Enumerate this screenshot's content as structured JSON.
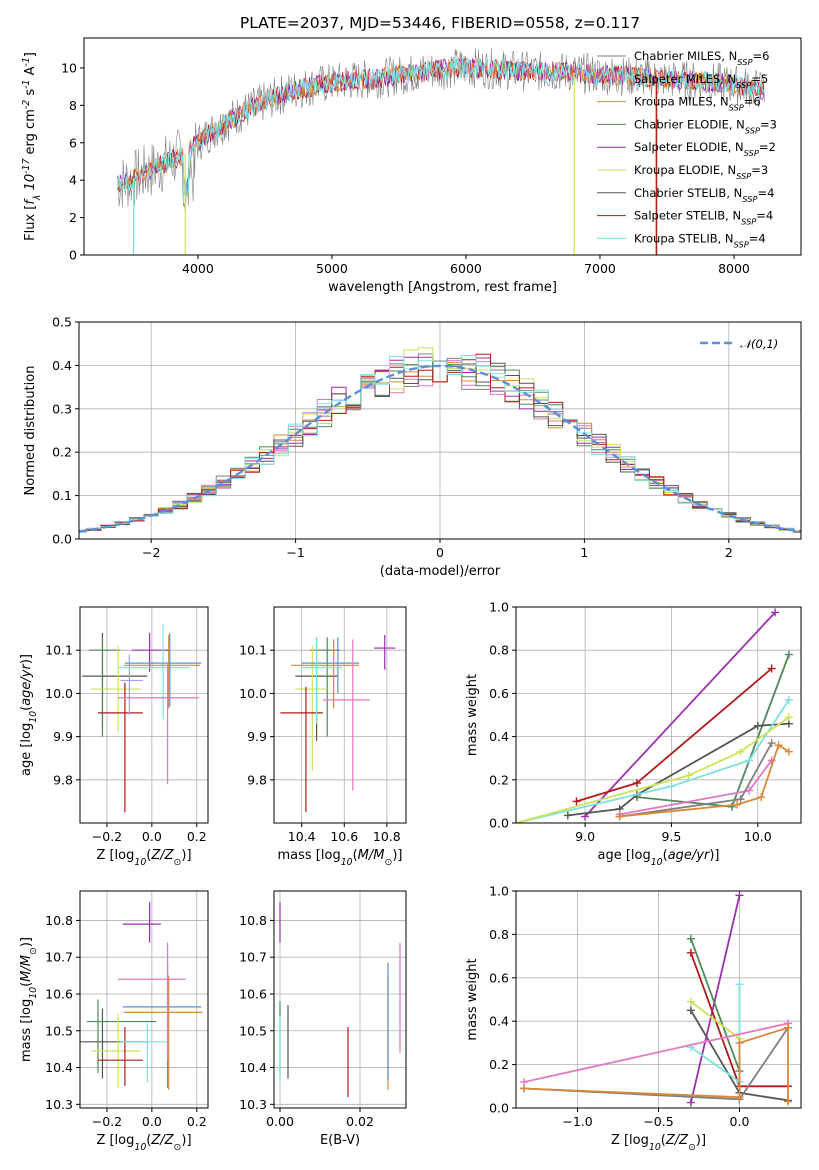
{
  "title": "PLATE=2037, MJD=53446, FIBERID=0558, z=0.117",
  "colors": {
    "chabrier_miles": "#808080",
    "salpeter_miles": "#e377c2",
    "kroupa_miles": "#d9883a",
    "chabrier_elodie": "#4f8a5a",
    "salpeter_elodie": "#9b2fae",
    "kroupa_elodie": "#c9e45b",
    "chabrier_stelib": "#555555",
    "salpeter_stelib": "#b01a1a",
    "kroupa_stelib": "#7fe0e0",
    "normal": "#5b8fd8",
    "spec_blue": "#6b8be0"
  },
  "legend": {
    "items": [
      {
        "label": "Chabrier MILES, N$_{SSP}$=6",
        "color": "#808080"
      },
      {
        "label": "Salpeter MILES, N$_{SSP}$=5",
        "color": "#e377c2"
      },
      {
        "label": "Kroupa MILES, N$_{SSP}$=6",
        "color": "#d9883a"
      },
      {
        "label": "Chabrier ELODIE, N$_{SSP}$=3",
        "color": "#4f8a5a"
      },
      {
        "label": "Salpeter ELODIE, N$_{SSP}$=2",
        "color": "#9b2fae"
      },
      {
        "label": "Kroupa ELODIE, N$_{SSP}$=3",
        "color": "#c9e45b"
      },
      {
        "label": "Chabrier STELIB, N$_{SSP}$=4",
        "color": "#555555"
      },
      {
        "label": "Salpeter STELIB, N$_{SSP}$=4",
        "color": "#b01a1a"
      },
      {
        "label": "Kroupa STELIB, N$_{SSP}$=4",
        "color": "#7fe0e0"
      }
    ],
    "normal_label": "$\\mathcal{N}(0,1)$"
  },
  "chart_data": [
    {
      "id": "spectrum",
      "type": "line",
      "xlabel": "wavelength [Angstrom, rest frame]",
      "ylabel": "Flux [$f_\\lambda 10^{-17}$ erg cm$^{-2}$ s$^{-1}$ A$^{-1}$]",
      "xlim": [
        3150,
        8500
      ],
      "ylim": [
        0,
        11.6
      ],
      "xticks": [
        4000,
        5000,
        6000,
        7000,
        8000
      ],
      "yticks": [
        0,
        2,
        4,
        6,
        8,
        10
      ],
      "grid": false,
      "continuum": {
        "x": [
          3400,
          3500,
          3700,
          3900,
          4000,
          4100,
          4300,
          4500,
          4700,
          4900,
          5100,
          5300,
          5500,
          5700,
          5900,
          6100,
          6300,
          6500,
          6700,
          6900,
          7100,
          7300,
          7500,
          7700,
          7900,
          8100,
          8230
        ],
        "y": [
          3.8,
          4.0,
          4.7,
          5.4,
          6.0,
          6.6,
          7.5,
          8.2,
          8.8,
          9.1,
          9.3,
          9.4,
          9.6,
          9.8,
          10.0,
          10.0,
          9.9,
          9.8,
          9.8,
          9.7,
          9.6,
          9.5,
          9.4,
          9.3,
          9.2,
          9.0,
          8.8
        ]
      }
    },
    {
      "id": "residuals",
      "type": "line",
      "xlabel": "(data-model)/error",
      "ylabel": "Normed distribution",
      "xlim": [
        -2.5,
        2.5
      ],
      "ylim": [
        0,
        0.5
      ],
      "xticks": [
        -2,
        -1,
        0,
        1,
        2
      ],
      "yticks": [
        0.0,
        0.1,
        0.2,
        0.3,
        0.4,
        0.5
      ],
      "grid": true,
      "legend_position": "top-right"
    },
    {
      "id": "age_vs_Z",
      "type": "scatter",
      "xlabel": "Z [log$_{10}$($Z/Z_\\odot$)]",
      "ylabel": "age  [log$_{10}$($age/yr$)]",
      "xlim": [
        -0.32,
        0.25
      ],
      "ylim": [
        9.7,
        10.2
      ],
      "xticks": [
        -0.2,
        0.0,
        0.2
      ],
      "yticks": [
        9.8,
        9.9,
        10.0,
        10.1
      ],
      "grid": true,
      "points": [
        {
          "x": -0.22,
          "y": 10.04,
          "xerr": [
            0.09,
            0.2
          ],
          "yerr": [
            0.12,
            0.1
          ],
          "color": "#555555"
        },
        {
          "x": -0.22,
          "y": 10.1,
          "xerr": [
            0.06,
            0.08
          ],
          "yerr": [
            0.2,
            0.03
          ],
          "color": "#4f8a5a"
        },
        {
          "x": -0.15,
          "y": 10.01,
          "xerr": [
            0.12,
            0.1
          ],
          "yerr": [
            0.1,
            0.1
          ],
          "color": "#c9e45b"
        },
        {
          "x": -0.12,
          "y": 9.955,
          "xerr": [
            0.12,
            0.08
          ],
          "yerr": [
            0.23,
            0.07
          ],
          "color": "#b01a1a"
        },
        {
          "x": -0.1,
          "y": 10.03,
          "xerr": [
            0.04,
            0.06
          ],
          "yerr": [
            0.08,
            0.06
          ],
          "color": "#a0a0ff"
        },
        {
          "x": -0.01,
          "y": 10.1,
          "xerr": [
            0.08,
            0.09
          ],
          "yerr": [
            0.05,
            0.04
          ],
          "color": "#9b2fae"
        },
        {
          "x": 0.05,
          "y": 10.06,
          "xerr": [
            0.2,
            0.12
          ],
          "yerr": [
            0.12,
            0.1
          ],
          "color": "#7fe0e0"
        },
        {
          "x": 0.075,
          "y": 10.065,
          "xerr": [
            0.2,
            0.14
          ],
          "yerr": [
            0.1,
            0.07
          ],
          "color": "#d9883a"
        },
        {
          "x": 0.08,
          "y": 10.07,
          "xerr": [
            0.2,
            0.14
          ],
          "yerr": [
            0.1,
            0.07
          ],
          "color": "#5b8fd8"
        },
        {
          "x": 0.07,
          "y": 9.99,
          "xerr": [
            0.22,
            0.14
          ],
          "yerr": [
            0.2,
            0.08
          ],
          "color": "#e377c2"
        }
      ]
    },
    {
      "id": "age_vs_mass",
      "type": "scatter",
      "xlabel": "mass [log$_{10}$($M/M_\\odot$)]",
      "ylabel": "",
      "xlim": [
        10.27,
        10.89
      ],
      "ylim": [
        9.7,
        10.2
      ],
      "xticks": [
        10.4,
        10.6,
        10.8
      ],
      "yticks": [
        9.8,
        9.9,
        10.0,
        10.1
      ],
      "grid": true,
      "points": [
        {
          "x": 10.47,
          "y": 10.04,
          "xerr": [
            0.1,
            0.1
          ],
          "yerr": [
            0.15,
            0.09
          ],
          "color": "#555555"
        },
        {
          "x": 10.52,
          "y": 10.1,
          "xerr": [
            0.08,
            0.06
          ],
          "yerr": [
            0.2,
            0.03
          ],
          "color": "#4f8a5a"
        },
        {
          "x": 10.45,
          "y": 10.01,
          "xerr": [
            0.08,
            0.07
          ],
          "yerr": [
            0.19,
            0.1
          ],
          "color": "#c9e45b"
        },
        {
          "x": 10.42,
          "y": 9.955,
          "xerr": [
            0.12,
            0.08
          ],
          "yerr": [
            0.23,
            0.06
          ],
          "color": "#b01a1a"
        },
        {
          "x": 10.57,
          "y": 10.07,
          "xerr": [
            0.17,
            0.1
          ],
          "yerr": [
            0.07,
            0.06
          ],
          "color": "#5b8fd8"
        },
        {
          "x": 10.55,
          "y": 10.065,
          "xerr": [
            0.2,
            0.12
          ],
          "yerr": [
            0.1,
            0.06
          ],
          "color": "#d9883a"
        },
        {
          "x": 10.47,
          "y": 10.06,
          "xerr": [
            0.07,
            0.12
          ],
          "yerr": [
            0.13,
            0.07
          ],
          "color": "#7fe0e0"
        },
        {
          "x": 10.64,
          "y": 9.985,
          "xerr": [
            0.14,
            0.08
          ],
          "yerr": [
            0.21,
            0.14
          ],
          "color": "#e377c2"
        },
        {
          "x": 10.79,
          "y": 10.105,
          "xerr": [
            0.05,
            0.05
          ],
          "yerr": [
            0.05,
            0.03
          ],
          "color": "#9b2fae"
        }
      ]
    },
    {
      "id": "weight_vs_age",
      "type": "line",
      "xlabel": "age  [log$_{10}$($age/yr$)]",
      "ylabel": "mass weight",
      "xlim": [
        8.6,
        10.25
      ],
      "ylim": [
        0,
        1
      ],
      "xticks": [
        9.0,
        9.5,
        10.0
      ],
      "yticks": [
        0.0,
        0.2,
        0.4,
        0.6,
        0.8,
        1.0
      ],
      "grid": true,
      "series": [
        {
          "color": "#9b2fae",
          "x": [
            9.0,
            10.1
          ],
          "y": [
            0.03,
            0.975
          ]
        },
        {
          "color": "#b01a1a",
          "x": [
            8.95,
            9.3,
            10.08
          ],
          "y": [
            0.1,
            0.185,
            0.715
          ]
        },
        {
          "color": "#4f8a5a",
          "x": [
            9.3,
            9.85,
            10.18
          ],
          "y": [
            0.12,
            0.075,
            0.78
          ]
        },
        {
          "color": "#555555",
          "x": [
            8.9,
            9.2,
            9.3,
            10.0,
            10.18
          ],
          "y": [
            0.035,
            0.065,
            0.13,
            0.45,
            0.46
          ]
        },
        {
          "color": "#7fe0e0",
          "x": [
            8.6,
            9.5,
            9.95,
            10.18
          ],
          "y": [
            0.0,
            0.17,
            0.29,
            0.57
          ]
        },
        {
          "color": "#c9e45b",
          "x": [
            8.6,
            9.6,
            9.9,
            10.18
          ],
          "y": [
            0.0,
            0.22,
            0.33,
            0.49
          ]
        },
        {
          "color": "#e377c2",
          "x": [
            9.2,
            9.95,
            10.08
          ],
          "y": [
            0.04,
            0.15,
            0.29
          ]
        },
        {
          "color": "#808080",
          "x": [
            9.2,
            9.9,
            10.08
          ],
          "y": [
            0.03,
            0.11,
            0.37
          ]
        },
        {
          "color": "#d9883a",
          "x": [
            9.2,
            9.88,
            10.02,
            10.12,
            10.18
          ],
          "y": [
            0.03,
            0.085,
            0.12,
            0.36,
            0.33
          ]
        }
      ]
    },
    {
      "id": "mass_vs_Z",
      "type": "scatter",
      "xlabel": "Z [log$_{10}$($Z/Z_\\odot$)]",
      "ylabel": "mass [log$_{10}$($M/M_\\odot$)]",
      "xlim": [
        -0.32,
        0.25
      ],
      "ylim": [
        10.29,
        10.88
      ],
      "xticks": [
        -0.2,
        0.0,
        0.2
      ],
      "yticks": [
        10.3,
        10.4,
        10.5,
        10.6,
        10.7,
        10.8
      ],
      "grid": true,
      "points": [
        {
          "x": -0.22,
          "y": 10.47,
          "xerr": [
            0.1,
            0.2
          ],
          "yerr": [
            0.1,
            0.09
          ],
          "color": "#555555"
        },
        {
          "x": -0.24,
          "y": 10.525,
          "xerr": [
            0.05,
            0.26
          ],
          "yerr": [
            0.14,
            0.06
          ],
          "color": "#4f8a5a"
        },
        {
          "x": -0.15,
          "y": 10.445,
          "xerr": [
            0.12,
            0.1
          ],
          "yerr": [
            0.1,
            0.1
          ],
          "color": "#c9e45b"
        },
        {
          "x": -0.12,
          "y": 10.42,
          "xerr": [
            0.12,
            0.08
          ],
          "yerr": [
            0.07,
            0.09
          ],
          "color": "#b01a1a"
        },
        {
          "x": -0.02,
          "y": 10.47,
          "xerr": [
            0.12,
            0.09
          ],
          "yerr": [
            0.11,
            0.05
          ],
          "color": "#7fe0e0"
        },
        {
          "x": -0.01,
          "y": 10.79,
          "xerr": [
            0.12,
            0.05
          ],
          "yerr": [
            0.05,
            0.06
          ],
          "color": "#9b2fae"
        },
        {
          "x": 0.07,
          "y": 10.565,
          "xerr": [
            0.2,
            0.15
          ],
          "yerr": [
            0.22,
            0.12
          ],
          "color": "#5b8fd8"
        },
        {
          "x": 0.075,
          "y": 10.55,
          "xerr": [
            0.2,
            0.15
          ],
          "yerr": [
            0.21,
            0.1
          ],
          "color": "#d9883a"
        },
        {
          "x": 0.07,
          "y": 10.64,
          "xerr": [
            0.22,
            0.08
          ],
          "yerr": [
            0.22,
            0.1
          ],
          "color": "#e377c2"
        }
      ]
    },
    {
      "id": "mass_vs_ebv",
      "type": "scatter",
      "xlabel": "E(B-V)",
      "ylabel": "",
      "xlim": [
        -0.0015,
        0.0315
      ],
      "ylim": [
        10.29,
        10.88
      ],
      "xticks": [
        0.0,
        0.02
      ],
      "yticks": [
        10.3,
        10.4,
        10.5,
        10.6,
        10.7,
        10.8
      ],
      "grid": true,
      "points": [
        {
          "x": 0.0,
          "y": 10.79,
          "yerr": [
            0.05,
            0.06
          ],
          "color": "#9b2fae"
        },
        {
          "x": 0.0,
          "y": 10.5,
          "yerr": [
            0.12,
            0.08
          ],
          "color": "#4f8a5a"
        },
        {
          "x": 0.0,
          "y": 10.45,
          "yerr": [
            0.09,
            0.09
          ],
          "color": "#7fe0e0"
        },
        {
          "x": 0.002,
          "y": 10.47,
          "yerr": [
            0.1,
            0.1
          ],
          "color": "#555555"
        },
        {
          "x": 0.017,
          "y": 10.42,
          "yerr": [
            0.1,
            0.09
          ],
          "color": "#b01a1a"
        },
        {
          "x": 0.027,
          "y": 10.55,
          "yerr": [
            0.21,
            0.1
          ],
          "color": "#d9883a"
        },
        {
          "x": 0.027,
          "y": 10.565,
          "yerr": [
            0.2,
            0.12
          ],
          "color": "#5b8fd8"
        },
        {
          "x": 0.03,
          "y": 10.64,
          "yerr": [
            0.2,
            0.1
          ],
          "color": "#e377c2"
        }
      ]
    },
    {
      "id": "weight_vs_Z",
      "type": "line",
      "xlabel": "Z [log$_{10}$($Z/Z_\\odot$)]",
      "ylabel": "mass weight",
      "xlim": [
        -1.38,
        0.38
      ],
      "ylim": [
        0,
        1
      ],
      "xticks": [
        -1.0,
        -0.5,
        0.0
      ],
      "yticks": [
        0.0,
        0.2,
        0.4,
        0.6,
        0.8,
        1.0
      ],
      "grid": true,
      "series": [
        {
          "color": "#9b2fae",
          "x": [
            -0.3,
            0.0
          ],
          "y": [
            0.025,
            0.98
          ]
        },
        {
          "color": "#b01a1a",
          "x": [
            -0.3,
            0.0,
            0.3
          ],
          "y": [
            0.715,
            0.1,
            0.1
          ]
        },
        {
          "color": "#4f8a5a",
          "x": [
            -0.3,
            0.0
          ],
          "y": [
            0.78,
            0.17
          ]
        },
        {
          "color": "#555555",
          "x": [
            -0.3,
            0.0,
            0.3
          ],
          "y": [
            0.45,
            0.07,
            0.035
          ]
        },
        {
          "color": "#7fe0e0",
          "x": [
            -0.3,
            0.0,
            0.0
          ],
          "y": [
            0.28,
            0.12,
            0.57
          ]
        },
        {
          "color": "#c9e45b",
          "x": [
            -0.3,
            0.0
          ],
          "y": [
            0.49,
            0.32
          ]
        },
        {
          "color": "#e377c2",
          "x": [
            -1.33,
            0.3
          ],
          "y": [
            0.12,
            0.39
          ]
        },
        {
          "color": "#808080",
          "x": [
            -1.33,
            0.0,
            0.3
          ],
          "y": [
            0.09,
            0.04,
            0.37
          ]
        },
        {
          "color": "#d9883a",
          "x": [
            -1.33,
            0.0,
            0.0,
            0.3,
            0.3
          ],
          "y": [
            0.09,
            0.05,
            0.3,
            0.37,
            0.03
          ]
        }
      ]
    }
  ]
}
